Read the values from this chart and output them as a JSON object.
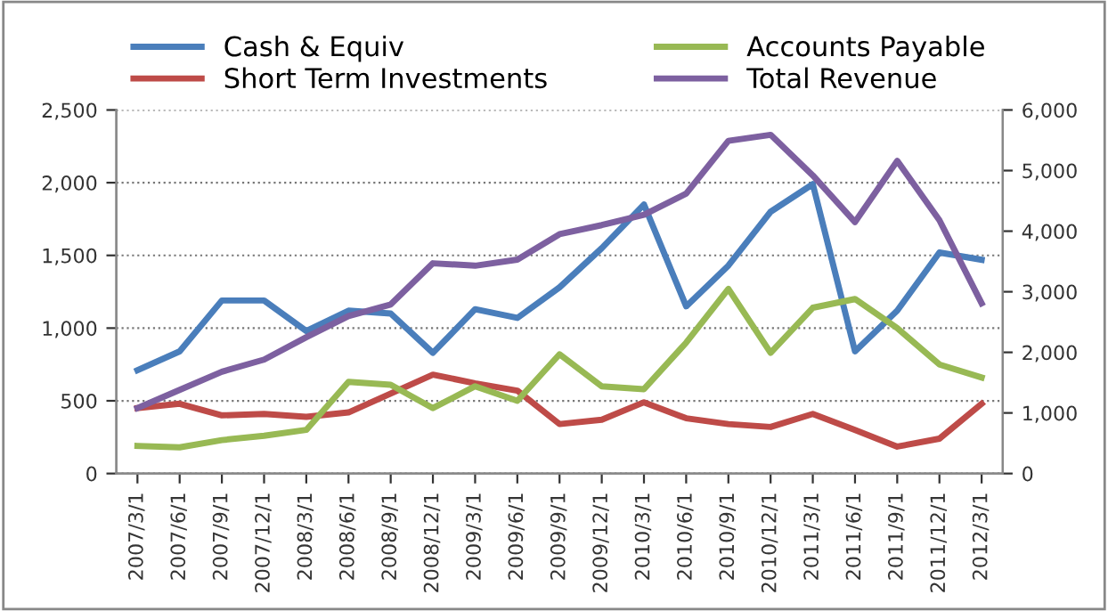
{
  "chart_data": {
    "type": "line",
    "categories": [
      "2007/3/1",
      "2007/6/1",
      "2007/9/1",
      "2007/12/1",
      "2008/3/1",
      "2008/6/1",
      "2008/9/1",
      "2008/12/1",
      "2009/3/1",
      "2009/6/1",
      "2009/9/1",
      "2009/12/1",
      "2010/3/1",
      "2010/6/1",
      "2010/9/1",
      "2010/12/1",
      "2011/3/1",
      "2011/6/1",
      "2011/9/1",
      "2011/12/1",
      "2012/3/1"
    ],
    "series": [
      {
        "name": "Cash & Equiv",
        "color": "#4a7ebb",
        "values": [
          710,
          840,
          1190,
          1190,
          980,
          1120,
          1100,
          830,
          1130,
          1070,
          1280,
          1550,
          1850,
          1150,
          1430,
          1800,
          1990,
          840,
          1120,
          1520,
          1470
        ]
      },
      {
        "name": "Short Term Investments",
        "color": "#be4b48",
        "values": [
          450,
          480,
          400,
          410,
          390,
          420,
          550,
          680,
          620,
          570,
          340,
          370,
          490,
          380,
          340,
          320,
          410,
          300,
          185,
          240,
          480
        ]
      },
      {
        "name": "Accounts Payable",
        "color": "#98b954",
        "values": [
          190,
          180,
          230,
          260,
          300,
          630,
          610,
          450,
          600,
          500,
          820,
          600,
          580,
          900,
          1270,
          830,
          1140,
          1200,
          1000,
          750,
          660
        ]
      },
      {
        "name": "Total Revenue",
        "color": "#7d60a0",
        "axis": "y2",
        "values": [
          1080,
          1380,
          1680,
          1880,
          2250,
          2600,
          2790,
          3470,
          3430,
          3530,
          3950,
          4100,
          4270,
          4620,
          5490,
          5590,
          4920,
          4150,
          5160,
          4180,
          2810
        ]
      }
    ],
    "ylim": [
      0,
      2500
    ],
    "yticks": [
      {
        "value": 0,
        "label": "0"
      },
      {
        "value": 500,
        "label": "500"
      },
      {
        "value": 1000,
        "label": "1,000"
      },
      {
        "value": 1500,
        "label": "1,500"
      },
      {
        "value": 2000,
        "label": "2,000"
      },
      {
        "value": 2500,
        "label": "2,500"
      }
    ],
    "y2lim": [
      0,
      6000
    ],
    "y2ticks": [
      {
        "value": 0,
        "label": "0"
      },
      {
        "value": 1000,
        "label": "1,000"
      },
      {
        "value": 2000,
        "label": "2,000"
      },
      {
        "value": 3000,
        "label": "3,000"
      },
      {
        "value": 4000,
        "label": "4,000"
      },
      {
        "value": 5000,
        "label": "5,000"
      },
      {
        "value": 6000,
        "label": "6,000"
      }
    ],
    "grid": "y",
    "legend": "top",
    "line_style": "solid",
    "marker": "none"
  }
}
